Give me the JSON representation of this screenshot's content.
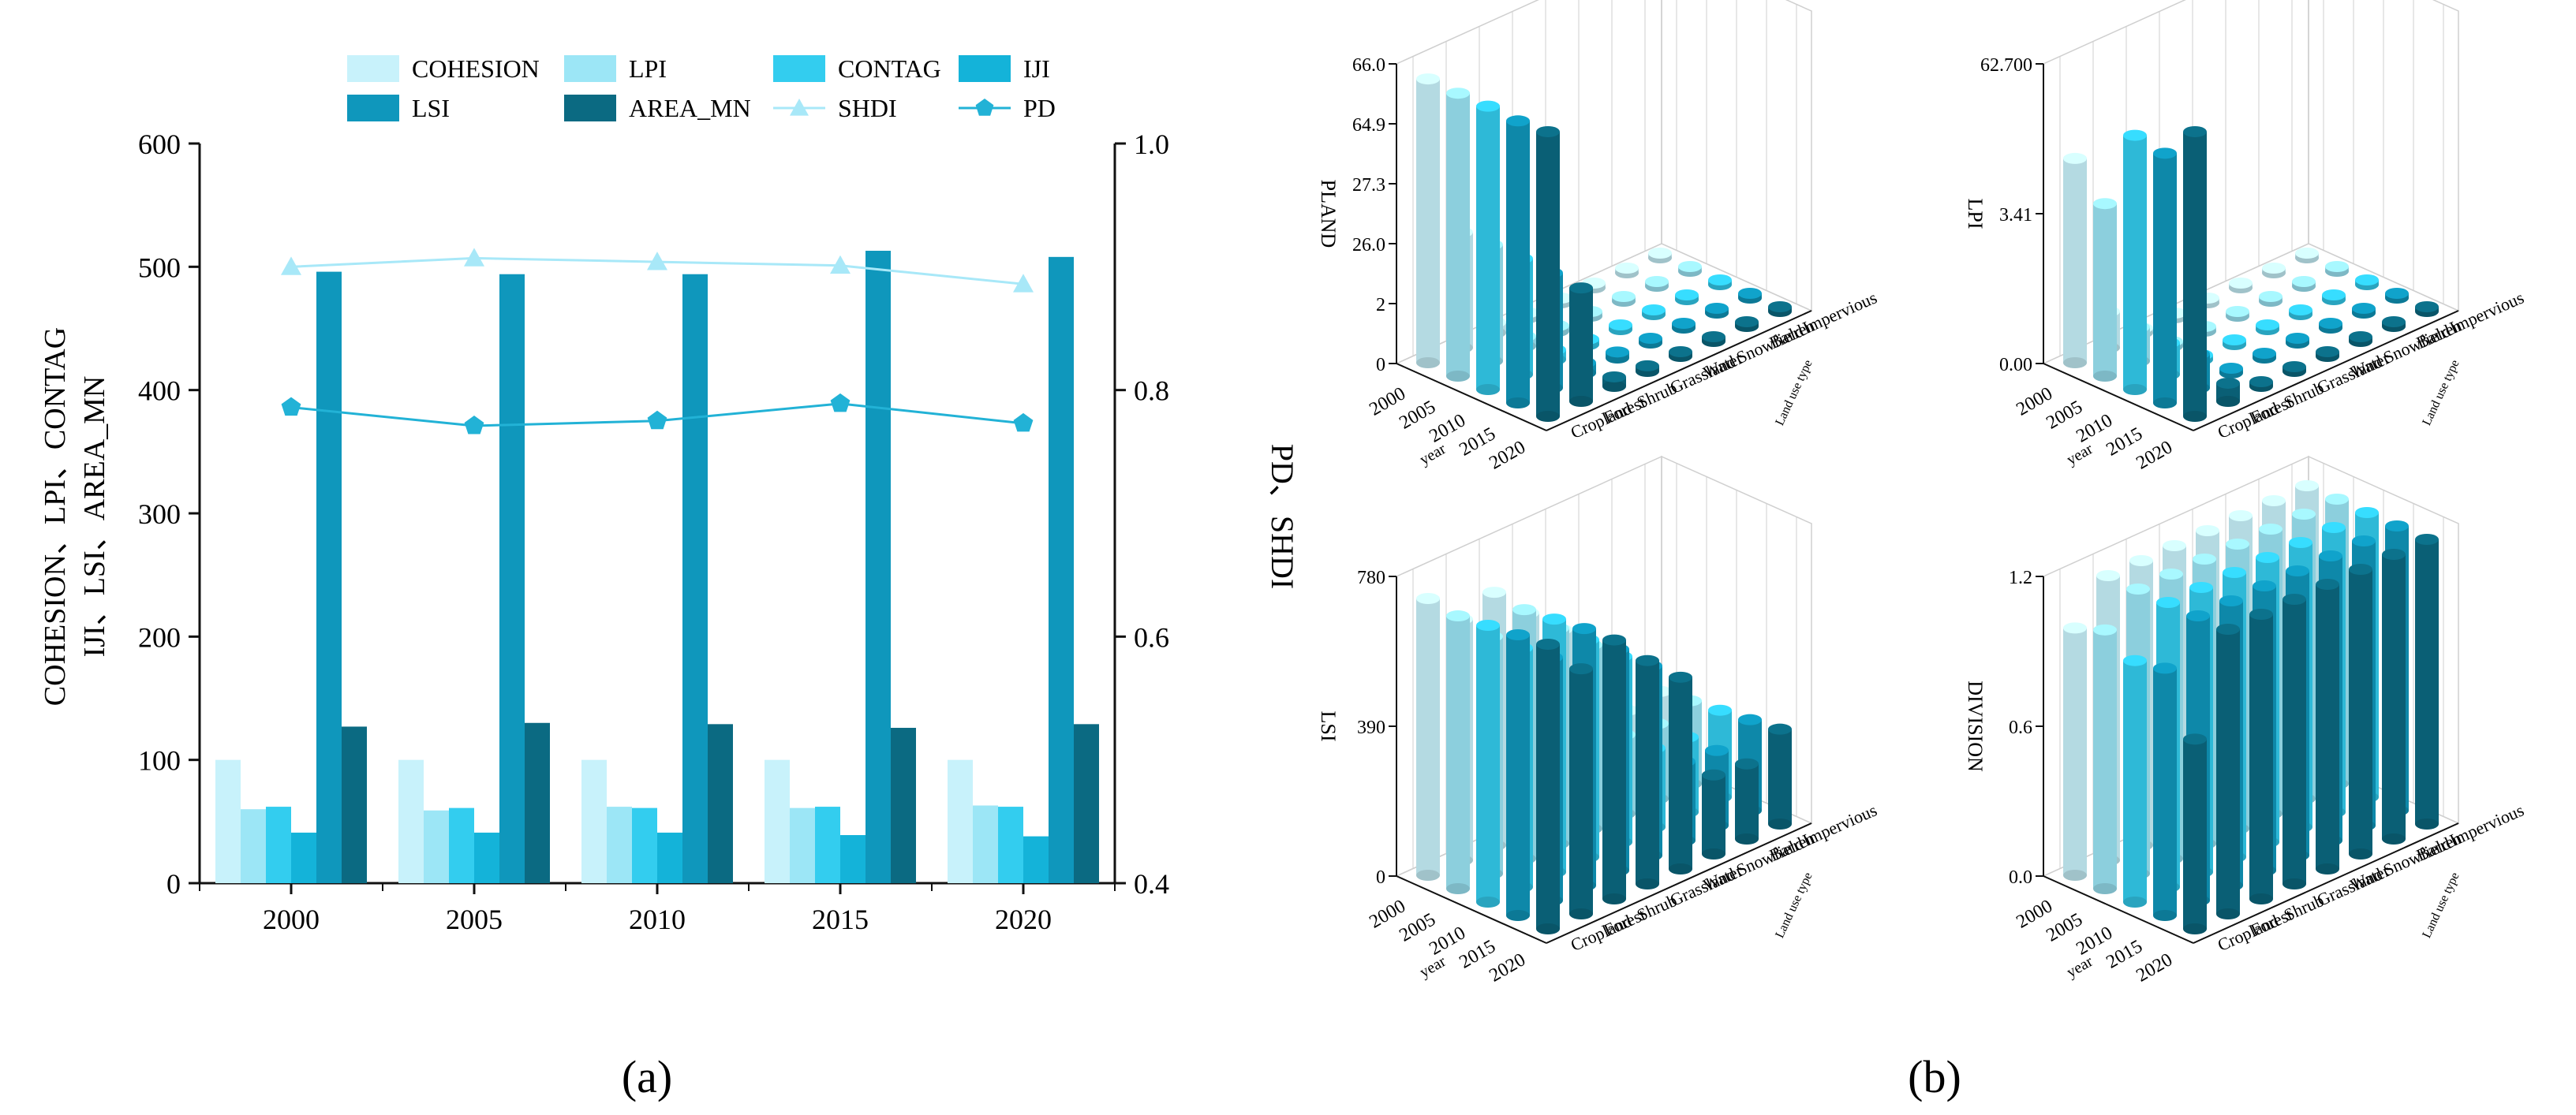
{
  "colors": {
    "cohesion": "#c8f2fb",
    "lpi": "#9ce6f6",
    "contag": "#33cdef",
    "iji": "#14b3d9",
    "lsi": "#0f97bc",
    "area_mn": "#0b6a82",
    "shdi": "#a8e8f8",
    "pd": "#22b2d6",
    "axis": "#111111",
    "grid": "#cfcfcf",
    "year2000": "#c8f2fb",
    "year2005": "#9ce6f6",
    "year2010": "#33cdef",
    "year2015": "#0f97bc",
    "year2020": "#0b6a82"
  },
  "panel_a": {
    "label": "(a)",
    "left_axis_label_line1": "COHESION、LPI、CONTAG",
    "left_axis_label_line2": "IJI、LSI、AREA_MN",
    "right_axis_label": "PD、SHDI"
  },
  "panel_b": {
    "label": "(b)",
    "year_axis_label": "year",
    "type_axis_label": "Land use type"
  },
  "chart_data": [
    {
      "type": "bar",
      "id": "landscape-indices",
      "title": "",
      "categories": [
        "2000",
        "2005",
        "2010",
        "2015",
        "2020"
      ],
      "ylim": [
        0,
        600
      ],
      "yticks": [
        0,
        100,
        200,
        300,
        400,
        500,
        600
      ],
      "y2lim": [
        0.4,
        1.0
      ],
      "y2ticks": [
        "0.4",
        "0.6",
        "0.8",
        "1.0"
      ],
      "legend_position": "top",
      "series": [
        {
          "name": "COHESION",
          "color_key": "cohesion",
          "values": [
            100,
            100,
            100,
            100,
            100
          ]
        },
        {
          "name": "LPI",
          "color_key": "lpi",
          "values": [
            60,
            59,
            62,
            61,
            63
          ]
        },
        {
          "name": "CONTAG",
          "color_key": "contag",
          "values": [
            62,
            61,
            61,
            62,
            62
          ]
        },
        {
          "name": "IJI",
          "color_key": "iji",
          "values": [
            41,
            41,
            41,
            39,
            38
          ]
        },
        {
          "name": "LSI",
          "color_key": "lsi",
          "values": [
            496,
            494,
            494,
            513,
            508
          ]
        },
        {
          "name": "AREA_MN",
          "color_key": "area_mn",
          "values": [
            127,
            130,
            129,
            126,
            129
          ]
        }
      ],
      "line_series": [
        {
          "name": "SHDI",
          "color_key": "shdi",
          "marker": "triangle",
          "axis": "right",
          "values": [
            0.9,
            0.907,
            0.904,
            0.901,
            0.886
          ]
        },
        {
          "name": "PD",
          "color_key": "pd",
          "marker": "pentagon",
          "axis": "right",
          "values": [
            0.786,
            0.771,
            0.775,
            0.789,
            0.773
          ]
        }
      ]
    },
    {
      "type": "bar3d",
      "id": "pland-3d",
      "zlabel": "PLAND",
      "ztick_labels": [
        "0",
        "2",
        "26.0",
        "27.3",
        "64.9",
        "66.0"
      ],
      "years": [
        "2000",
        "2005",
        "2010",
        "2015",
        "2020"
      ],
      "land_types": [
        "Cropland",
        "Forest",
        "Shrub",
        "Grassland",
        "Water",
        "Snowfield",
        "Barren",
        "Impervious"
      ],
      "values": [
        [
          65.8,
          26.8,
          2.4,
          1.2,
          0.3,
          0.1,
          0.1,
          0.1
        ],
        [
          65.6,
          27.0,
          2.3,
          1.3,
          0.3,
          0.1,
          0.1,
          0.2
        ],
        [
          65.7,
          26.9,
          2.3,
          1.3,
          0.3,
          0.1,
          0.1,
          0.3
        ],
        [
          65.4,
          26.7,
          2.4,
          1.4,
          0.3,
          0.1,
          0.1,
          0.5
        ],
        [
          66.0,
          26.3,
          2.2,
          1.3,
          0.3,
          0.1,
          0.1,
          0.7
        ]
      ]
    },
    {
      "type": "bar3d",
      "id": "lpi-3d",
      "zlabel": "LPI",
      "ztick_labels": [
        "0.00",
        "3.41",
        "62.700"
      ],
      "years": [
        "2000",
        "2005",
        "2010",
        "2015",
        "2020"
      ],
      "land_types": [
        "Cropland",
        "Forest",
        "Shrub",
        "Grassland",
        "Water",
        "Snowfield",
        "Barren",
        "Impervious"
      ],
      "values": [
        [
          45.0,
          8.0,
          0.3,
          0.2,
          0.1,
          0.05,
          0.05,
          0.05
        ],
        [
          38.0,
          7.5,
          0.3,
          0.2,
          0.1,
          0.05,
          0.05,
          0.05
        ],
        [
          56.0,
          7.0,
          0.3,
          0.2,
          0.1,
          0.05,
          0.05,
          0.05
        ],
        [
          55.0,
          7.5,
          0.3,
          0.2,
          0.1,
          0.05,
          0.05,
          0.05
        ],
        [
          62.7,
          4.0,
          0.3,
          0.2,
          0.1,
          0.05,
          0.05,
          0.05
        ]
      ]
    },
    {
      "type": "bar3d",
      "id": "lsi-3d",
      "zlabel": "LSI",
      "ztick_labels": [
        "0",
        "390",
        "780"
      ],
      "years": [
        "2000",
        "2005",
        "2010",
        "2015",
        "2020"
      ],
      "land_types": [
        "Cropland",
        "Forest",
        "Shrub",
        "Grassland",
        "Water",
        "Snowfield",
        "Barren",
        "Impervious"
      ],
      "values": [
        [
          700,
          610,
          640,
          550,
          470,
          200,
          190,
          200
        ],
        [
          690,
          600,
          630,
          545,
          465,
          200,
          190,
          210
        ],
        [
          700,
          605,
          640,
          550,
          470,
          200,
          190,
          220
        ],
        [
          710,
          615,
          650,
          560,
          480,
          200,
          190,
          230
        ],
        [
          720,
          620,
          655,
          565,
          485,
          200,
          190,
          240
        ]
      ]
    },
    {
      "type": "bar3d",
      "id": "division-3d",
      "zlabel": "DIVISION",
      "ztick_labels": [
        "0.0",
        "0.6",
        "1.2"
      ],
      "years": [
        "2000",
        "2005",
        "2010",
        "2015",
        "2020"
      ],
      "land_types": [
        "Cropland",
        "Forest",
        "Shrub",
        "Grassland",
        "Water",
        "Snowfield",
        "Barren",
        "Impervious"
      ],
      "values": [
        [
          0.86,
          0.99,
          0.99,
          0.99,
          0.99,
          0.99,
          0.99,
          0.99
        ],
        [
          0.9,
          0.99,
          0.99,
          0.99,
          0.99,
          0.99,
          0.99,
          0.99
        ],
        [
          0.84,
          0.99,
          0.99,
          0.99,
          0.99,
          0.99,
          0.99,
          0.99
        ],
        [
          0.86,
          0.99,
          0.99,
          0.99,
          0.99,
          0.99,
          0.99,
          0.99
        ],
        [
          0.66,
          0.99,
          0.99,
          0.99,
          0.99,
          0.99,
          0.99,
          0.99
        ]
      ]
    }
  ]
}
